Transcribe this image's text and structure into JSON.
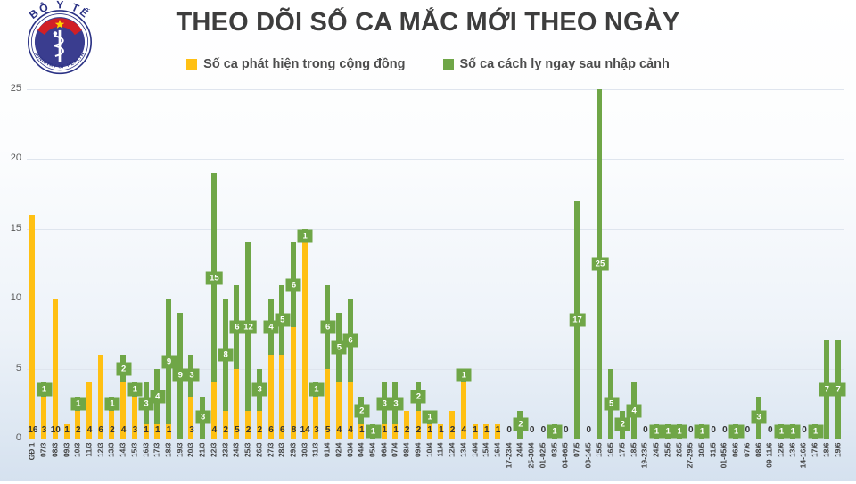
{
  "logo": {
    "top_text": "BỘ Y TẾ",
    "bottom_text": "MINISTRY OF HEALTH"
  },
  "title": "THEO DÕI SỐ CA MẮC MỚI THEO NGÀY",
  "legend": [
    {
      "label": "Số ca phát hiện trong cộng đồng",
      "color": "#FFC013"
    },
    {
      "label": "Số ca cách ly ngay sau nhập cảnh",
      "color": "#6FA647"
    }
  ],
  "chart_data": {
    "type": "bar",
    "stacked": true,
    "grid": true,
    "legend_position": "top",
    "ylim": [
      0,
      25
    ],
    "yticks": [
      0,
      5,
      10,
      15,
      20,
      25
    ],
    "categories": [
      "GĐ 1",
      "07/3",
      "08/3",
      "09/3",
      "10/3",
      "11/3",
      "12/3",
      "13/3",
      "14/3",
      "15/3",
      "16/3",
      "17/3",
      "18/3",
      "19/3",
      "20/3",
      "21/3",
      "22/3",
      "23/3",
      "24/3",
      "25/3",
      "26/3",
      "27/3",
      "28/3",
      "29/3",
      "30/3",
      "31/3",
      "01/4",
      "02/4",
      "03/4",
      "04/4",
      "05/4",
      "06/4",
      "07/4",
      "08/4",
      "09/4",
      "10/4",
      "11/4",
      "12/4",
      "13/4",
      "14/4",
      "15/4",
      "16/4",
      "17-23/4",
      "24/4",
      "25-30/4",
      "01-02/5",
      "03/5",
      "04-06/5",
      "07/5",
      "08-14/5",
      "15/5",
      "16/5",
      "17/5",
      "18/5",
      "19-23/5",
      "24/5",
      "25/5",
      "26/5",
      "27-29/5",
      "30/5",
      "31/5",
      "01-05/6",
      "06/6",
      "07/6",
      "08/6",
      "09-11/6",
      "12/6",
      "13/6",
      "14-16/6",
      "17/6",
      "18/6",
      "19/6"
    ],
    "series": [
      {
        "name": "Số ca phát hiện trong cộng đồng",
        "color": "#FFC013",
        "values": [
          16,
          3,
          10,
          1,
          2,
          4,
          6,
          2,
          4,
          3,
          1,
          1,
          1,
          0,
          3,
          0,
          4,
          2,
          5,
          2,
          2,
          6,
          6,
          8,
          14,
          3,
          5,
          4,
          4,
          1,
          0,
          1,
          1,
          2,
          2,
          1,
          1,
          2,
          4,
          1,
          1,
          1,
          0,
          0,
          0,
          0,
          0,
          0,
          0,
          0,
          0,
          0,
          0,
          0,
          0,
          0,
          0,
          0,
          0,
          0,
          0,
          0,
          0,
          0,
          0,
          0,
          0,
          0,
          0,
          0,
          0,
          0
        ]
      },
      {
        "name": "Số ca cách ly ngay sau nhập cảnh",
        "color": "#6FA647",
        "values": [
          0,
          1,
          0,
          0,
          1,
          0,
          0,
          1,
          2,
          1,
          3,
          4,
          9,
          9,
          3,
          3,
          15,
          8,
          6,
          12,
          3,
          4,
          5,
          6,
          1,
          1,
          6,
          5,
          6,
          2,
          1,
          3,
          3,
          0,
          2,
          1,
          0,
          0,
          1,
          0,
          0,
          0,
          0,
          2,
          0,
          0,
          1,
          0,
          17,
          0,
          25,
          5,
          2,
          4,
          0,
          1,
          1,
          1,
          0,
          1,
          0,
          0,
          1,
          0,
          3,
          0,
          1,
          1,
          0,
          1,
          7,
          7
        ]
      }
    ]
  }
}
